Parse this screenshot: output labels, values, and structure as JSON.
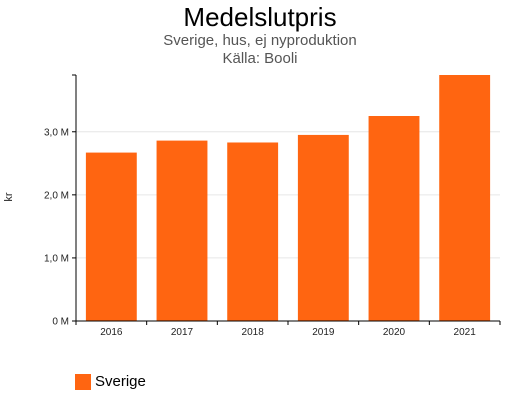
{
  "chart_data": {
    "type": "bar",
    "title": "Medelslutpris",
    "subtitle": "Sverige, hus, ej nyproduktion",
    "source": "Källa: Booli",
    "ylabel": "kr",
    "categories": [
      "2016",
      "2017",
      "2018",
      "2019",
      "2020",
      "2021"
    ],
    "series": [
      {
        "name": "Sverige",
        "values": [
          2.67,
          2.86,
          2.83,
          2.95,
          3.25,
          3.9
        ]
      }
    ],
    "y_ticks": [
      {
        "value": 0,
        "label": "0 M"
      },
      {
        "value": 1,
        "label": "1,0 M"
      },
      {
        "value": 2,
        "label": "2,0 M"
      },
      {
        "value": 3,
        "label": "3,0 M"
      }
    ],
    "ylim": [
      0,
      3.9
    ],
    "grid": true,
    "legend_position": "bottom-left",
    "bar_color": "#ff6511"
  }
}
